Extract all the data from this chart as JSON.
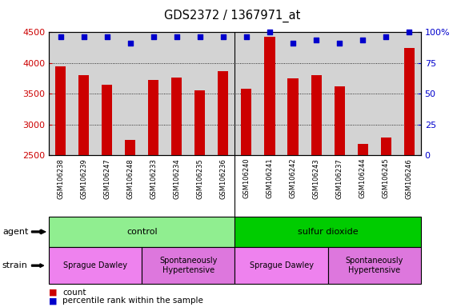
{
  "title": "GDS2372 / 1367971_at",
  "samples": [
    "GSM106238",
    "GSM106239",
    "GSM106247",
    "GSM106248",
    "GSM106233",
    "GSM106234",
    "GSM106235",
    "GSM106236",
    "GSM106240",
    "GSM106241",
    "GSM106242",
    "GSM106243",
    "GSM106237",
    "GSM106244",
    "GSM106245",
    "GSM106246"
  ],
  "counts": [
    3950,
    3800,
    3650,
    2750,
    3720,
    3760,
    3560,
    3870,
    3580,
    4430,
    3750,
    3800,
    3620,
    2680,
    2780,
    4250
  ],
  "percentile": [
    96,
    96,
    96,
    91,
    96,
    96,
    96,
    96,
    96,
    100,
    91,
    94,
    91,
    94,
    96,
    100
  ],
  "ylim_left": [
    2500,
    4500
  ],
  "ylim_right": [
    0,
    100
  ],
  "yticks_left": [
    2500,
    3000,
    3500,
    4000,
    4500
  ],
  "yticks_right": [
    0,
    25,
    50,
    75,
    100
  ],
  "bar_color": "#cc0000",
  "dot_color": "#0000cc",
  "bg_color": "#d3d3d3",
  "label_bg_color": "#c8c8c8",
  "agent_groups": [
    {
      "label": "control",
      "start": 0,
      "end": 8,
      "color": "#90ee90"
    },
    {
      "label": "sulfur dioxide",
      "start": 8,
      "end": 16,
      "color": "#00cc00"
    }
  ],
  "strain_groups": [
    {
      "label": "Sprague Dawley",
      "start": 0,
      "end": 4,
      "color": "#ee82ee"
    },
    {
      "label": "Spontaneously\nHypertensive",
      "start": 4,
      "end": 8,
      "color": "#dd77dd"
    },
    {
      "label": "Sprague Dawley",
      "start": 8,
      "end": 12,
      "color": "#ee82ee"
    },
    {
      "label": "Spontaneously\nHypertensive",
      "start": 12,
      "end": 16,
      "color": "#dd77dd"
    }
  ],
  "legend_items": [
    {
      "label": "count",
      "color": "#cc0000"
    },
    {
      "label": "percentile rank within the sample",
      "color": "#0000cc"
    }
  ]
}
